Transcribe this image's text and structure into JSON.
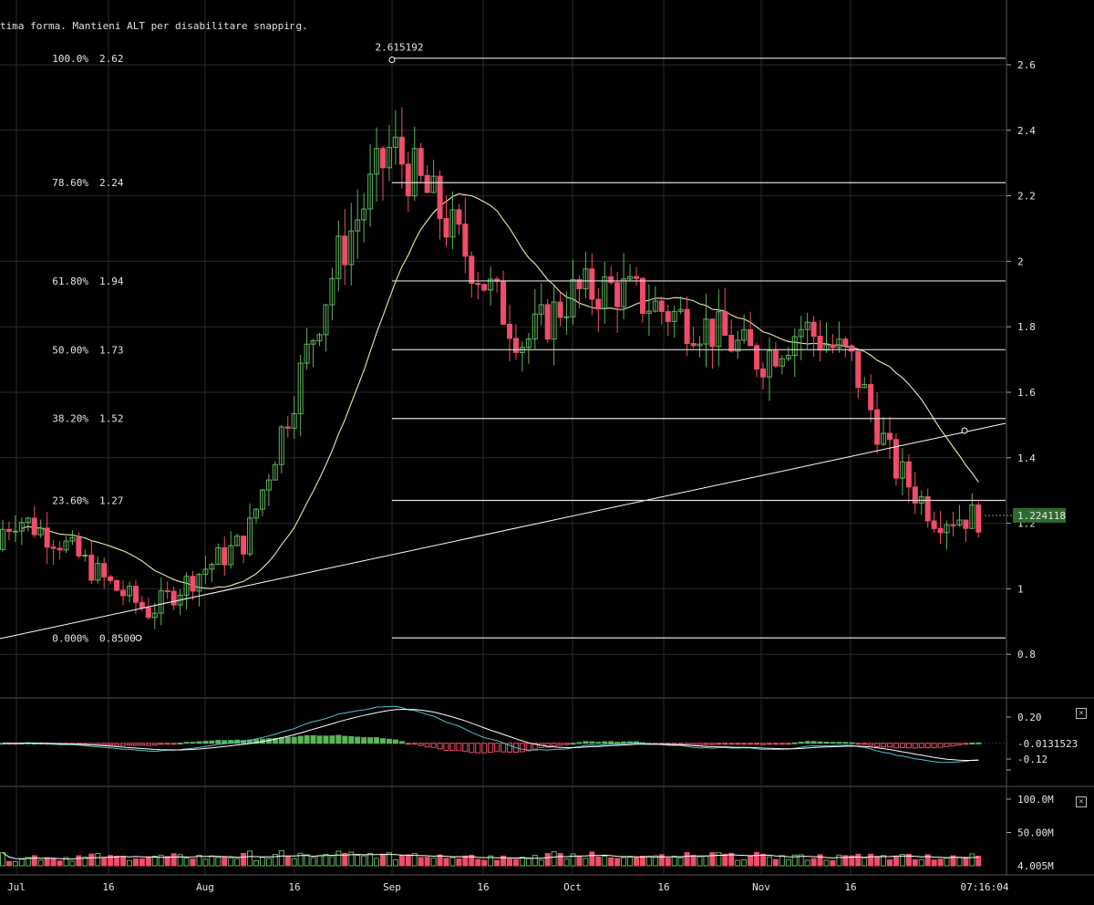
{
  "toolbar_hint": "tima forma. Mantieni ALT per disabilitare snapping.",
  "colors": {
    "up": "#5cb35c",
    "down": "#ef4d6a",
    "ma": "#f0e6b0",
    "line": "#ffffff",
    "macd": "#4fc3d0",
    "signal": "#ffffff",
    "price_tag": "#2e6b2e",
    "grid": "#2a2a2a"
  },
  "price_axis": {
    "ticks": [
      "2.6",
      "2.4",
      "2.2",
      "2",
      "1.8",
      "1.6",
      "1.4",
      "1.2",
      "1",
      "0.8"
    ],
    "current_price": "1.224118"
  },
  "time_axis": {
    "ticks": [
      "Jul",
      "16",
      "Aug",
      "16",
      "Sep",
      "16",
      "Oct",
      "16",
      "Nov",
      "16"
    ],
    "current_time": "07:16:04"
  },
  "fibonacci": {
    "high_label": "2.615192",
    "levels": [
      {
        "pct": "100.0%",
        "value": "2.62",
        "price": 2.62
      },
      {
        "pct": "78.60%",
        "value": "2.24",
        "price": 2.24
      },
      {
        "pct": "61.80%",
        "value": "1.94",
        "price": 1.94
      },
      {
        "pct": "50.00%",
        "value": "1.73",
        "price": 1.73
      },
      {
        "pct": "38.20%",
        "value": "1.52",
        "price": 1.52
      },
      {
        "pct": "23.60%",
        "value": "1.27",
        "price": 1.27
      },
      {
        "pct": "0.000%",
        "value": "0.8500",
        "price": 0.85
      }
    ]
  },
  "macd_panel": {
    "ticks": [
      "0.20",
      "-0.12"
    ],
    "current_value": "-0.0131523"
  },
  "volume_panel": {
    "ticks": [
      "100.0M",
      "50.00M"
    ],
    "current_value": "4.005M"
  },
  "chart_data": {
    "type": "candlestick",
    "x": [
      "2018-06-25",
      "2018-07-01",
      "2018-07-08",
      "2018-07-16",
      "2018-07-23",
      "2018-08-01",
      "2018-08-08",
      "2018-08-16",
      "2018-08-23",
      "2018-09-01",
      "2018-09-08",
      "2018-09-16",
      "2018-09-23",
      "2018-10-01",
      "2018-10-08",
      "2018-10-16",
      "2018-10-23",
      "2018-11-01",
      "2018-11-08",
      "2018-11-16",
      "2018-11-23",
      "2018-11-30"
    ],
    "close": [
      1.12,
      1.22,
      1.15,
      1.02,
      0.93,
      1.06,
      1.15,
      1.6,
      2.0,
      2.35,
      2.18,
      1.95,
      1.75,
      1.9,
      1.92,
      1.85,
      1.8,
      1.7,
      1.8,
      1.7,
      1.38,
      1.22
    ],
    "ylim": [
      0.72,
      2.72
    ],
    "moving_average": true
  }
}
